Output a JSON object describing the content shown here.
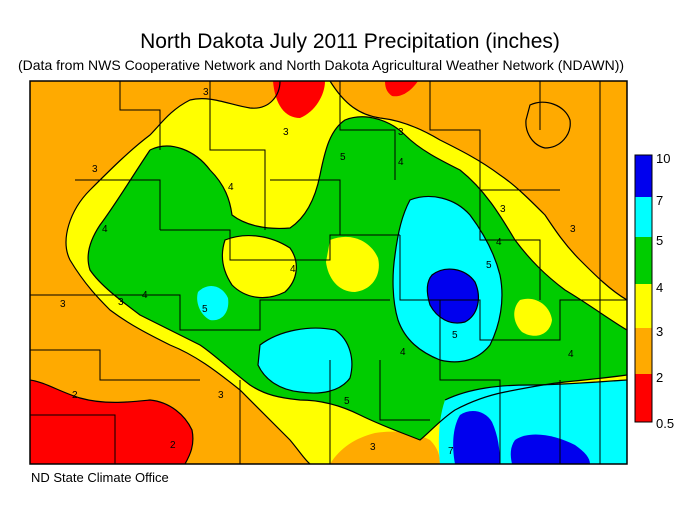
{
  "title": "North Dakota July 2011 Precipitation (inches)",
  "subtitle": "(Data from NWS Cooperative Network and North Dakota Agricultural Weather Network (NDAWN))",
  "credit": "ND State Climate Office",
  "legend": {
    "breaks": [
      "10",
      "7",
      "5",
      "4",
      "3",
      "2",
      "0.5"
    ],
    "colors": [
      "#0000ee",
      "#00ffff",
      "#00cc00",
      "#ffff00",
      "#ffaa00",
      "#ff0000"
    ]
  },
  "contour_labels": [
    "2",
    "3",
    "4",
    "5",
    "7"
  ]
}
